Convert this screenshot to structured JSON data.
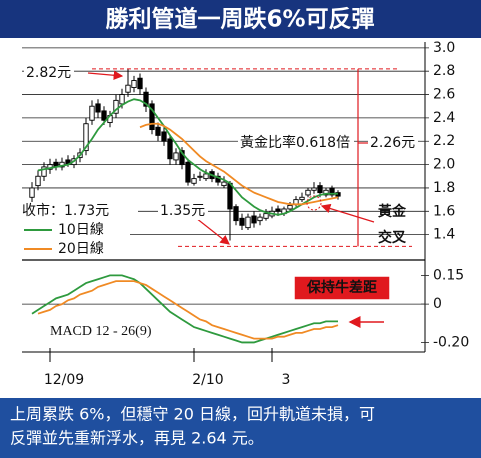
{
  "header": {
    "title": "勝利管道一周跌6%可反彈"
  },
  "chart_data": [
    {
      "type": "candlestick",
      "categories": [
        null,
        null,
        null,
        "12/09",
        null,
        null,
        null,
        null,
        null,
        null,
        null,
        null,
        null,
        null,
        null,
        null,
        null,
        null,
        null,
        null,
        null,
        null,
        null,
        null,
        null,
        null,
        null,
        "2/10",
        null,
        null,
        null,
        null,
        null,
        null,
        null,
        null,
        null,
        null,
        null,
        null,
        "3",
        null,
        null,
        null,
        null,
        null,
        null,
        null,
        null,
        null,
        null,
        null
      ],
      "open": [
        1.72,
        1.82,
        1.9,
        1.96,
        2.02,
        1.98,
        2.04,
        2.0,
        2.06,
        2.12,
        2.38,
        2.52,
        2.46,
        2.36,
        2.44,
        2.52,
        2.62,
        2.66,
        2.74,
        2.62,
        2.52,
        2.32,
        2.28,
        2.22,
        2.04,
        2.12,
        2.02,
        1.84,
        1.9,
        1.88,
        1.94,
        1.9,
        1.82,
        1.84,
        1.64,
        1.54,
        1.46,
        1.56,
        1.52,
        1.54,
        1.56,
        1.62,
        1.58,
        1.62,
        1.66,
        1.7,
        1.74,
        1.78,
        1.82,
        1.74,
        1.8,
        1.76
      ],
      "high": [
        1.85,
        1.95,
        2.02,
        2.05,
        2.05,
        2.06,
        2.08,
        2.08,
        2.14,
        2.4,
        2.55,
        2.56,
        2.5,
        2.46,
        2.6,
        2.65,
        2.82,
        2.76,
        2.78,
        2.66,
        2.55,
        2.36,
        2.32,
        2.26,
        2.14,
        2.15,
        2.05,
        1.92,
        1.94,
        1.96,
        1.96,
        1.93,
        1.9,
        1.86,
        1.66,
        1.58,
        1.58,
        1.6,
        1.58,
        1.62,
        1.64,
        1.65,
        1.64,
        1.68,
        1.73,
        1.76,
        1.8,
        1.85,
        1.85,
        1.8,
        1.82,
        1.78
      ],
      "low": [
        1.66,
        1.78,
        1.86,
        1.92,
        1.95,
        1.95,
        1.98,
        1.97,
        2.02,
        2.08,
        2.34,
        2.4,
        2.34,
        2.32,
        2.4,
        2.48,
        2.58,
        2.62,
        2.6,
        2.45,
        2.26,
        2.2,
        2.16,
        2.0,
        2.0,
        1.96,
        1.82,
        1.82,
        1.86,
        1.86,
        1.85,
        1.82,
        1.8,
        1.35,
        1.48,
        1.44,
        1.44,
        1.46,
        1.48,
        1.52,
        1.54,
        1.56,
        1.56,
        1.6,
        1.64,
        1.68,
        1.72,
        1.75,
        1.72,
        1.72,
        1.72,
        1.7
      ],
      "close": [
        1.8,
        1.9,
        1.98,
        2.0,
        1.98,
        2.02,
        2.0,
        2.05,
        2.1,
        2.35,
        2.5,
        2.45,
        2.38,
        2.42,
        2.55,
        2.6,
        2.68,
        2.72,
        2.65,
        2.5,
        2.3,
        2.25,
        2.2,
        2.05,
        2.1,
        2.0,
        1.85,
        1.88,
        1.9,
        1.92,
        1.88,
        1.85,
        1.85,
        1.62,
        1.52,
        1.48,
        1.55,
        1.5,
        1.55,
        1.58,
        1.6,
        1.6,
        1.62,
        1.65,
        1.7,
        1.72,
        1.78,
        1.8,
        1.76,
        1.78,
        1.74,
        1.73
      ],
      "candle_color": "#000000",
      "series": [
        {
          "name": "10日線",
          "color": "#2e9a3e",
          "values": [
            null,
            1.95,
            1.96,
            1.97,
            1.98,
            1.99,
            2.0,
            2.03,
            2.08,
            2.15,
            2.22,
            2.3,
            2.36,
            2.42,
            2.47,
            2.51,
            2.54,
            2.56,
            2.55,
            2.52,
            2.47,
            2.4,
            2.33,
            2.25,
            2.18,
            2.1,
            2.04,
            2.0,
            1.96,
            1.93,
            1.91,
            1.89,
            1.87,
            1.84,
            1.78,
            1.72,
            1.68,
            1.64,
            1.61,
            1.59,
            1.58,
            1.57,
            1.58,
            1.6,
            1.63,
            1.66,
            1.69,
            1.72,
            1.74,
            1.75,
            1.75,
            1.75
          ]
        },
        {
          "name": "20日線",
          "color": "#f08a24",
          "values": [
            null,
            null,
            null,
            null,
            null,
            null,
            null,
            null,
            null,
            null,
            null,
            null,
            null,
            null,
            null,
            null,
            null,
            null,
            2.32,
            2.34,
            2.35,
            2.35,
            2.33,
            2.3,
            2.26,
            2.22,
            2.17,
            2.12,
            2.07,
            2.03,
            2.0,
            1.97,
            1.94,
            1.9,
            1.86,
            1.82,
            1.79,
            1.76,
            1.74,
            1.72,
            1.7,
            1.68,
            1.67,
            1.66,
            1.66,
            1.66,
            1.67,
            1.68,
            1.69,
            1.7,
            1.71,
            1.72
          ]
        }
      ],
      "ylim": [
        1.2,
        3.05
      ],
      "yticks": [
        {
          "value": 3,
          "label": "3.0"
        },
        2.8,
        2.6,
        2.4,
        2.2,
        {
          "value": 2,
          "label": "2.0"
        },
        1.8,
        1.6,
        1.4
      ],
      "grid": true,
      "reference_lines": [
        2.82,
        1.3
      ],
      "annotations": [
        "2.82元",
        "黃金比率0.618倍",
        "2.26元",
        "收市：1.73元",
        "1.35元",
        "黃金",
        "交叉"
      ]
    },
    {
      "type": "line",
      "label": "MACD 12 - 26(9)",
      "series": [
        {
          "color": "#2e9a3e",
          "values": [
            -0.05,
            -0.03,
            -0.01,
            0.01,
            0.03,
            0.04,
            0.05,
            0.07,
            0.09,
            0.11,
            0.12,
            0.13,
            0.14,
            0.15,
            0.15,
            0.15,
            0.14,
            0.13,
            0.11,
            0.08,
            0.05,
            0.02,
            -0.01,
            -0.04,
            -0.06,
            -0.08,
            -0.1,
            -0.12,
            -0.13,
            -0.14,
            -0.15,
            -0.16,
            -0.17,
            -0.18,
            -0.19,
            -0.2,
            -0.2,
            -0.2,
            -0.19,
            -0.18,
            -0.17,
            -0.16,
            -0.15,
            -0.14,
            -0.13,
            -0.12,
            -0.11,
            -0.1,
            -0.1,
            -0.09,
            -0.09,
            -0.09
          ]
        },
        {
          "color": "#f08a24",
          "values": [
            null,
            -0.05,
            -0.04,
            -0.03,
            -0.01,
            0.0,
            0.02,
            0.03,
            0.05,
            0.06,
            0.07,
            0.09,
            0.1,
            0.11,
            0.12,
            0.12,
            0.12,
            0.12,
            0.11,
            0.1,
            0.08,
            0.06,
            0.04,
            0.02,
            0.0,
            -0.02,
            -0.04,
            -0.06,
            -0.08,
            -0.09,
            -0.11,
            -0.12,
            -0.13,
            -0.14,
            -0.15,
            -0.16,
            -0.17,
            -0.18,
            -0.18,
            -0.18,
            -0.18,
            -0.17,
            -0.17,
            -0.16,
            -0.15,
            -0.15,
            -0.14,
            -0.13,
            -0.13,
            -0.12,
            -0.12,
            -0.11
          ]
        }
      ],
      "ylim": [
        -0.25,
        0.22
      ],
      "yticks": [
        0.15,
        0,
        {
          "value": -0.2,
          "label": "-0.20"
        }
      ],
      "annotation": "保持牛差距"
    }
  ],
  "caption": [
    "上周累跌 6%，但穩守 20 日線，回升軌道未損，可",
    "反彈並先重新浮水，再見 2.64 元。"
  ]
}
